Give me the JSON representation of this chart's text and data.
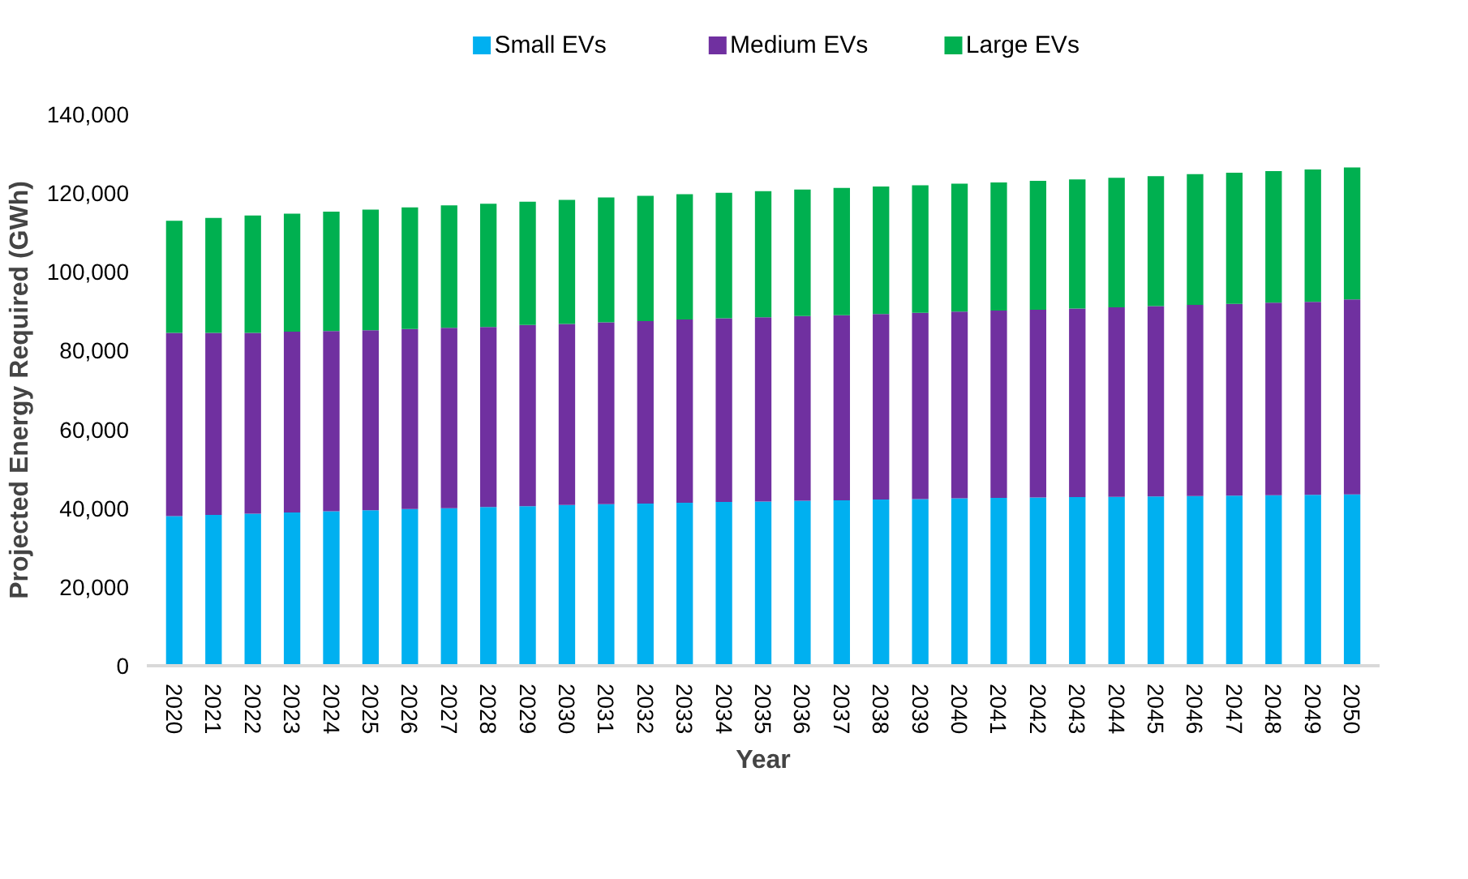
{
  "chart_data": {
    "type": "bar",
    "stacked": true,
    "xlabel": "Year",
    "ylabel": "Projected Energy Required (GWh)",
    "categories": [
      "2020",
      "2021",
      "2022",
      "2023",
      "2024",
      "2025",
      "2026",
      "2027",
      "2028",
      "2029",
      "2030",
      "2031",
      "2032",
      "2033",
      "2034",
      "2035",
      "2036",
      "2037",
      "2038",
      "2039",
      "2040",
      "2041",
      "2042",
      "2043",
      "2044",
      "2045",
      "2046",
      "2047",
      "2048",
      "2049",
      "2050"
    ],
    "series": [
      {
        "name": "Small EVs",
        "color": "#00b0f0",
        "values": [
          38000,
          38300,
          38600,
          38900,
          39200,
          39500,
          39800,
          40000,
          40300,
          40500,
          40800,
          41000,
          41200,
          41400,
          41600,
          41700,
          41900,
          42000,
          42200,
          42300,
          42500,
          42600,
          42700,
          42800,
          42900,
          43000,
          43100,
          43200,
          43300,
          43400,
          43500
        ]
      },
      {
        "name": "Medium EVs",
        "color": "#7030a0",
        "values": [
          46500,
          46200,
          45900,
          45900,
          45800,
          45700,
          45700,
          45800,
          45700,
          46000,
          46000,
          46200,
          46300,
          46500,
          46600,
          46800,
          46900,
          47000,
          47100,
          47300,
          47400,
          47600,
          47700,
          47900,
          48100,
          48300,
          48500,
          48700,
          48900,
          49000,
          49500
        ]
      },
      {
        "name": "Large EVs",
        "color": "#00b050",
        "values": [
          28500,
          29200,
          29800,
          30000,
          30300,
          30600,
          30900,
          31100,
          31300,
          31300,
          31500,
          31700,
          31800,
          31800,
          31900,
          32000,
          32100,
          32300,
          32400,
          32400,
          32500,
          32500,
          32700,
          32800,
          32900,
          33000,
          33200,
          33300,
          33400,
          33600,
          33500
        ]
      }
    ],
    "ylim": [
      0,
      140000
    ],
    "yticks": [
      {
        "value": 0,
        "label": "0"
      },
      {
        "value": 20000,
        "label": "20,000"
      },
      {
        "value": 40000,
        "label": "40,000"
      },
      {
        "value": 60000,
        "label": "60,000"
      },
      {
        "value": 80000,
        "label": "80,000"
      },
      {
        "value": 100000,
        "label": "100,000"
      },
      {
        "value": 120000,
        "label": "120,000"
      },
      {
        "value": 140000,
        "label": "140,000"
      }
    ],
    "grid": false,
    "legend": "top"
  }
}
